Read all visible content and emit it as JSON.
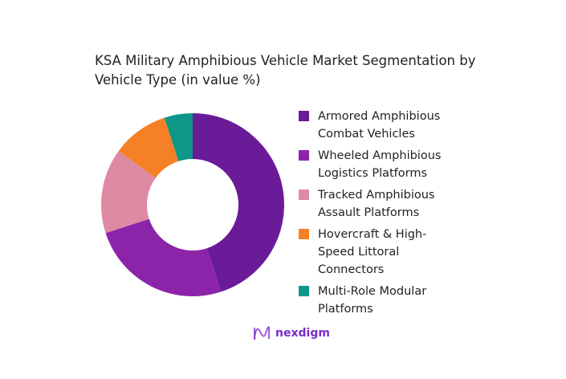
{
  "chart_data": {
    "type": "pie",
    "donut": true,
    "title": "KSA Military Amphibious Vehicle Market Segmentation by Vehicle Type (in value %)",
    "categories": [
      "Armored Amphibious Combat Vehicles",
      "Wheeled Amphibious Logistics Platforms",
      "Tracked Amphibious Assault Platforms",
      "Hovercraft & High-Speed Littoral Connectors",
      "Multi-Role Modular Platforms"
    ],
    "values": [
      45,
      25,
      15,
      10,
      5
    ],
    "colors": [
      "#6a1b98",
      "#8c24aa",
      "#de8aa2",
      "#f58025",
      "#0e9688"
    ],
    "legend_position": "right"
  },
  "legend_lines": [
    [
      "Armored Amphibious",
      "Combat Vehicles"
    ],
    [
      "Wheeled Amphibious",
      "Logistics Platforms"
    ],
    [
      "Tracked Amphibious",
      "Assault Platforms"
    ],
    [
      "Hovercraft & High-",
      "Speed Littoral",
      "Connectors"
    ],
    [
      "Multi-Role Modular",
      "Platforms"
    ]
  ],
  "logo": {
    "text": "nexdigm"
  }
}
